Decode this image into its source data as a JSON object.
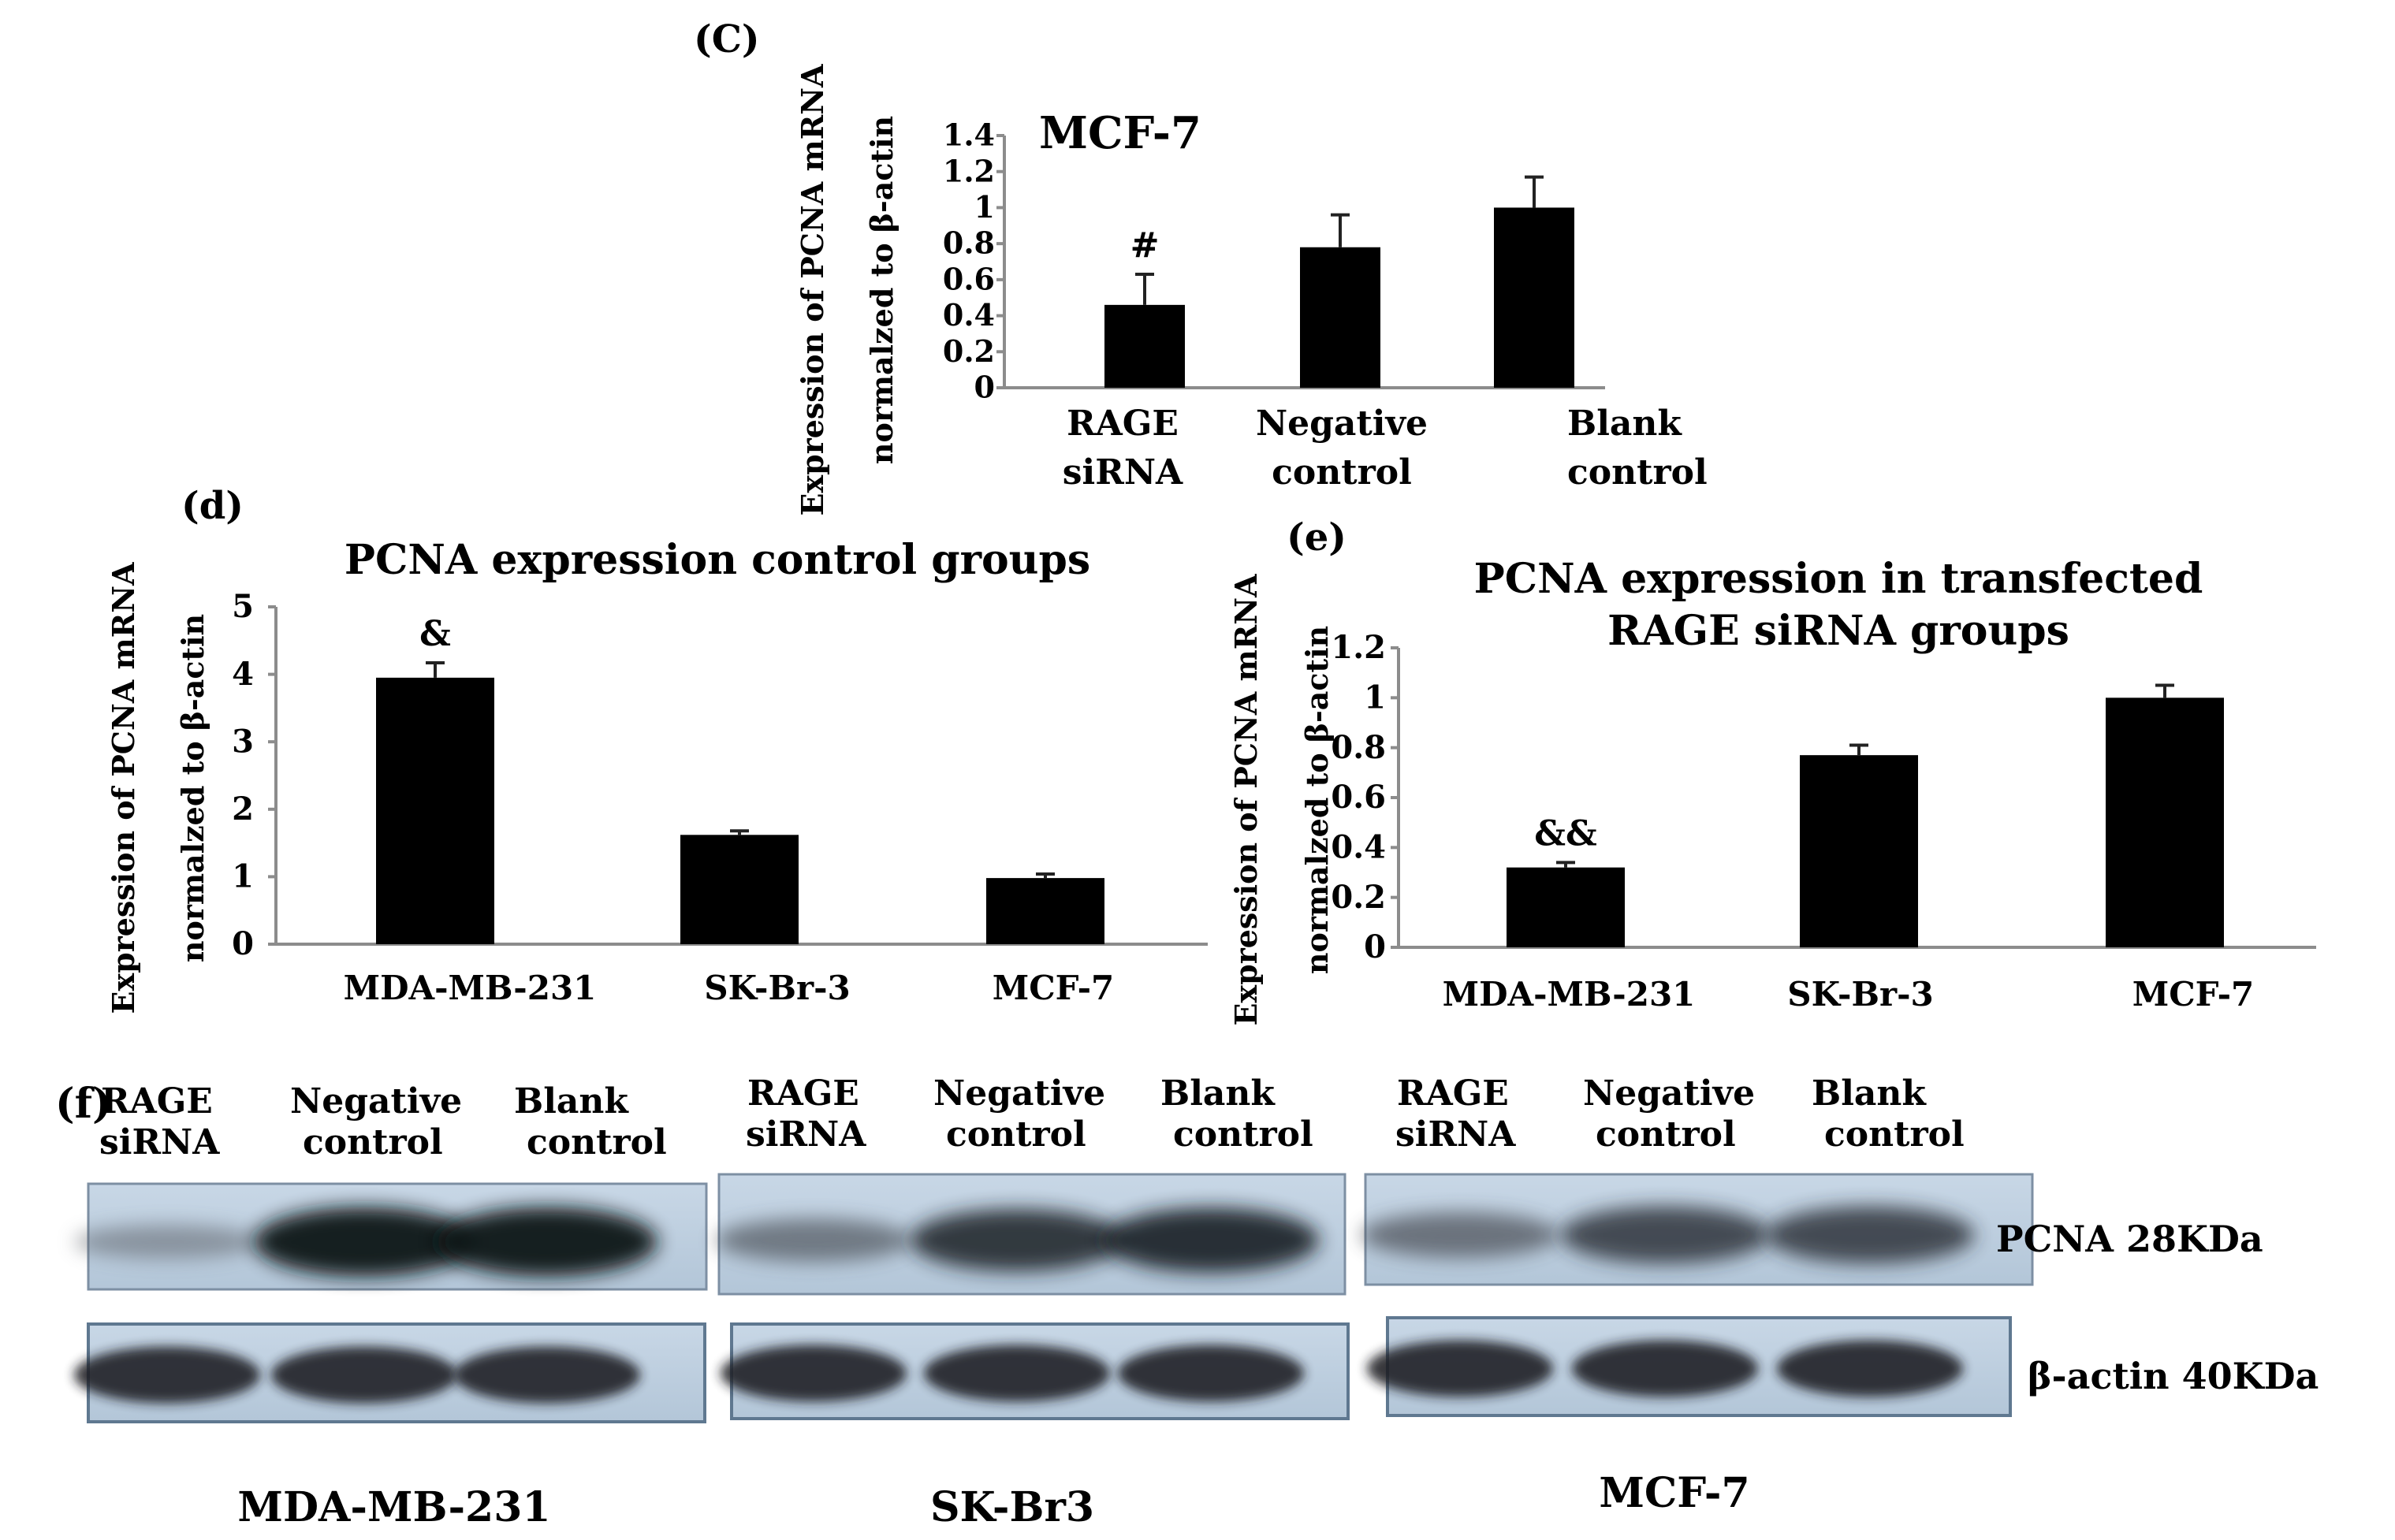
{
  "chart_data": [
    {
      "panel": "(C)",
      "type": "bar",
      "title": "MCF-7",
      "ylabel_line1": "Expression of PCNA mRNA",
      "ylabel_line2": "normalzed to β-actin",
      "categories": [
        [
          "RAGE",
          "siRNA"
        ],
        [
          "Negative",
          "control"
        ],
        [
          "Blank",
          "control"
        ]
      ],
      "values": [
        0.46,
        0.78,
        1.0
      ],
      "errors": [
        0.17,
        0.18,
        0.17
      ],
      "annotations": [
        "#",
        "",
        ""
      ],
      "ylim": [
        0,
        1.4
      ],
      "ticks": [
        0,
        0.2,
        0.4,
        0.6,
        0.8,
        1,
        1.2,
        1.4
      ],
      "tick_labels": [
        "0",
        "0.2",
        "0.4",
        "0.6",
        "0.8",
        "1",
        "1.2",
        "1.4"
      ]
    },
    {
      "panel": "(d)",
      "type": "bar",
      "title": "PCNA expression control groups",
      "ylabel_line1": "Expression of PCNA mRNA",
      "ylabel_line2": "normalzed to β-actin",
      "categories": [
        [
          "MDA-MB-231"
        ],
        [
          "SK-Br-3"
        ],
        [
          "MCF-7"
        ]
      ],
      "values": [
        3.95,
        1.62,
        0.98
      ],
      "errors": [
        0.22,
        0.06,
        0.06
      ],
      "annotations": [
        "&",
        "",
        ""
      ],
      "ylim": [
        0,
        5
      ],
      "ticks": [
        0,
        1,
        2,
        3,
        4,
        5
      ],
      "tick_labels": [
        "0",
        "1",
        "2",
        "3",
        "4",
        "5"
      ]
    },
    {
      "panel": "(e)",
      "type": "bar",
      "title_line1": "PCNA expression in transfected",
      "title_line2": "RAGE siRNA groups",
      "ylabel_line1": "Expression of PCNA mRNA",
      "ylabel_line2": "normalzed to β-actin",
      "categories": [
        [
          "MDA-MB-231"
        ],
        [
          "SK-Br-3"
        ],
        [
          "MCF-7"
        ]
      ],
      "values": [
        0.32,
        0.77,
        1.0
      ],
      "errors": [
        0.02,
        0.04,
        0.05
      ],
      "annotations": [
        "&&",
        "",
        ""
      ],
      "ylim": [
        0,
        1.2
      ],
      "ticks": [
        0,
        0.2,
        0.4,
        0.6,
        0.8,
        1,
        1.2
      ],
      "tick_labels": [
        "0",
        "0.2",
        "0.4",
        "0.6",
        "0.8",
        "1",
        "1.2"
      ]
    }
  ],
  "blot": {
    "panel": "(f)",
    "groups": [
      {
        "cell_line": "MDA-MB-231",
        "lanes": [
          [
            "RAGE",
            "siRNA"
          ],
          [
            "Negative",
            "control"
          ],
          [
            "Blank",
            "control"
          ]
        ],
        "pcna_intensity": [
          0.25,
          1.0,
          1.0
        ],
        "actin_intensity": [
          0.9,
          0.9,
          0.9
        ]
      },
      {
        "cell_line": "SK-Br3",
        "lanes": [
          [
            "RAGE",
            "siRNA"
          ],
          [
            "Negative",
            "control"
          ],
          [
            "Blank",
            "control"
          ]
        ],
        "pcna_intensity": [
          0.45,
          0.85,
          0.9
        ],
        "actin_intensity": [
          0.9,
          0.9,
          0.9
        ]
      },
      {
        "cell_line": "MCF-7",
        "lanes": [
          [
            "RAGE",
            "siRNA"
          ],
          [
            "Negative",
            "control"
          ],
          [
            "Blank",
            "control"
          ]
        ],
        "pcna_intensity": [
          0.5,
          0.75,
          0.75
        ],
        "actin_intensity": [
          0.9,
          0.9,
          0.9
        ]
      }
    ],
    "band_labels": [
      "PCNA 28KDa",
      "β-actin 40KDa"
    ]
  }
}
